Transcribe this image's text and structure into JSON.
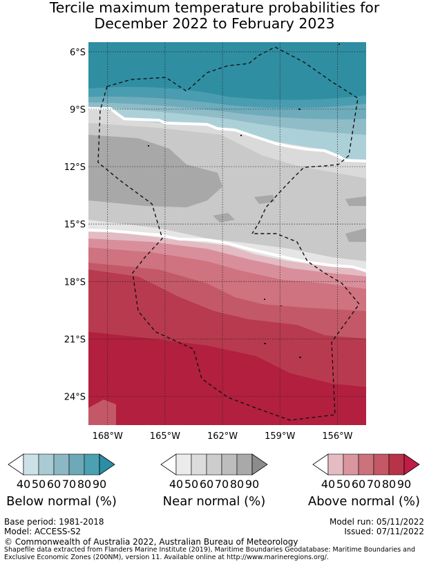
{
  "title": {
    "line1": "Tercile maximum temperature probabilities for",
    "line2": "December 2022 to February 2023"
  },
  "map": {
    "lat_labels": [
      "6°S",
      "9°S",
      "12°S",
      "15°S",
      "18°S",
      "21°S",
      "24°S"
    ],
    "lon_labels": [
      "168°W",
      "165°W",
      "162°W",
      "159°W",
      "156°W"
    ],
    "lat_values": [
      -6,
      -9,
      -12,
      -15,
      -18,
      -21,
      -24
    ],
    "lon_values": [
      -168,
      -165,
      -162,
      -159,
      -156
    ],
    "lat_range": [
      -25.5,
      -5.5
    ],
    "lon_range": [
      -169.0,
      -154.5
    ]
  },
  "legends": [
    {
      "name": "below",
      "label": "Below normal (%)",
      "ticks": [
        "40",
        "50",
        "60",
        "70",
        "80",
        "90"
      ],
      "colors": [
        "#cbe1e7",
        "#a9cbd3",
        "#8cb8c4",
        "#6ea9b8",
        "#4ba0b2",
        "#2b8ea4"
      ],
      "arrow_color": "#2b8ea4"
    },
    {
      "name": "near",
      "label": "Near normal (%)",
      "ticks": [
        "40",
        "50",
        "60",
        "70",
        "80",
        "90"
      ],
      "colors": [
        "#ebebeb",
        "#dcdcdc",
        "#cdcdcd",
        "#bdbdbd",
        "#a9a9a9",
        "#8c8c8c"
      ],
      "arrow_color": "#8c8c8c"
    },
    {
      "name": "above",
      "label": "Above normal (%)",
      "ticks": [
        "40",
        "50",
        "60",
        "70",
        "80",
        "90"
      ],
      "colors": [
        "#e6bcc3",
        "#d9969f",
        "#cc727c",
        "#c45866",
        "#b73448",
        "#a31f3f"
      ],
      "arrow_color": "#c01c45"
    }
  ],
  "footer": {
    "base_period": "Base period: 1981-2018",
    "model": "Model: ACCESS-S2",
    "model_run": "Model run: 05/11/2022",
    "issued": "Issued: 07/11/2022",
    "copyright": "© Commonwealth of Australia 2022, Australian Bureau of Meteorology",
    "shapefile_line1": "Shapefile data extracted from Flanders Marine Institute (2019), Maritime Boundaries Geodatabase: Maritime Boundaries and",
    "shapefile_line2": "Exclusive Economic Zones (200NM), version 11. Available online at http://www.marineregions.org/."
  }
}
